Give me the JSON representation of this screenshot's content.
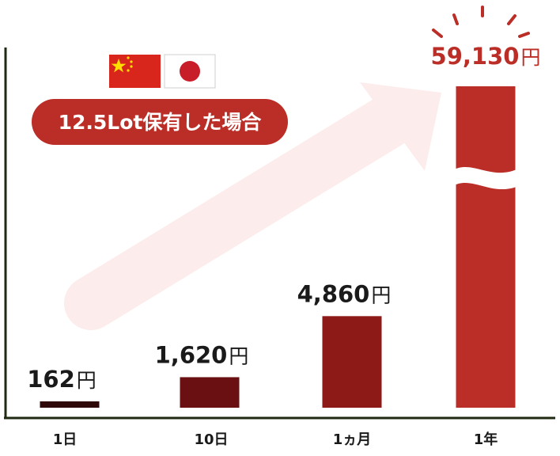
{
  "chart_data": {
    "type": "bar",
    "categories": [
      "1日",
      "10日",
      "1ヵ月",
      "1年"
    ],
    "values": [
      162,
      1620,
      4860,
      59130
    ],
    "unit": "円",
    "axis_break_on_last_bar": true,
    "title": "",
    "xlabel": "",
    "ylabel": ""
  },
  "badge": {
    "text": "12.5Lot保有した場合"
  },
  "flags": [
    {
      "icon": "china-flag-icon"
    },
    {
      "icon": "japan-flag-icon"
    }
  ],
  "colors": {
    "bars": [
      "#2e0709",
      "#6a1012",
      "#8e1a18",
      "#bb2e27"
    ],
    "accent_red": "#bb2e27",
    "label_dark": "#1a1a1a",
    "arrow_fill": "#fdecec",
    "axis": "#1f2a10"
  }
}
